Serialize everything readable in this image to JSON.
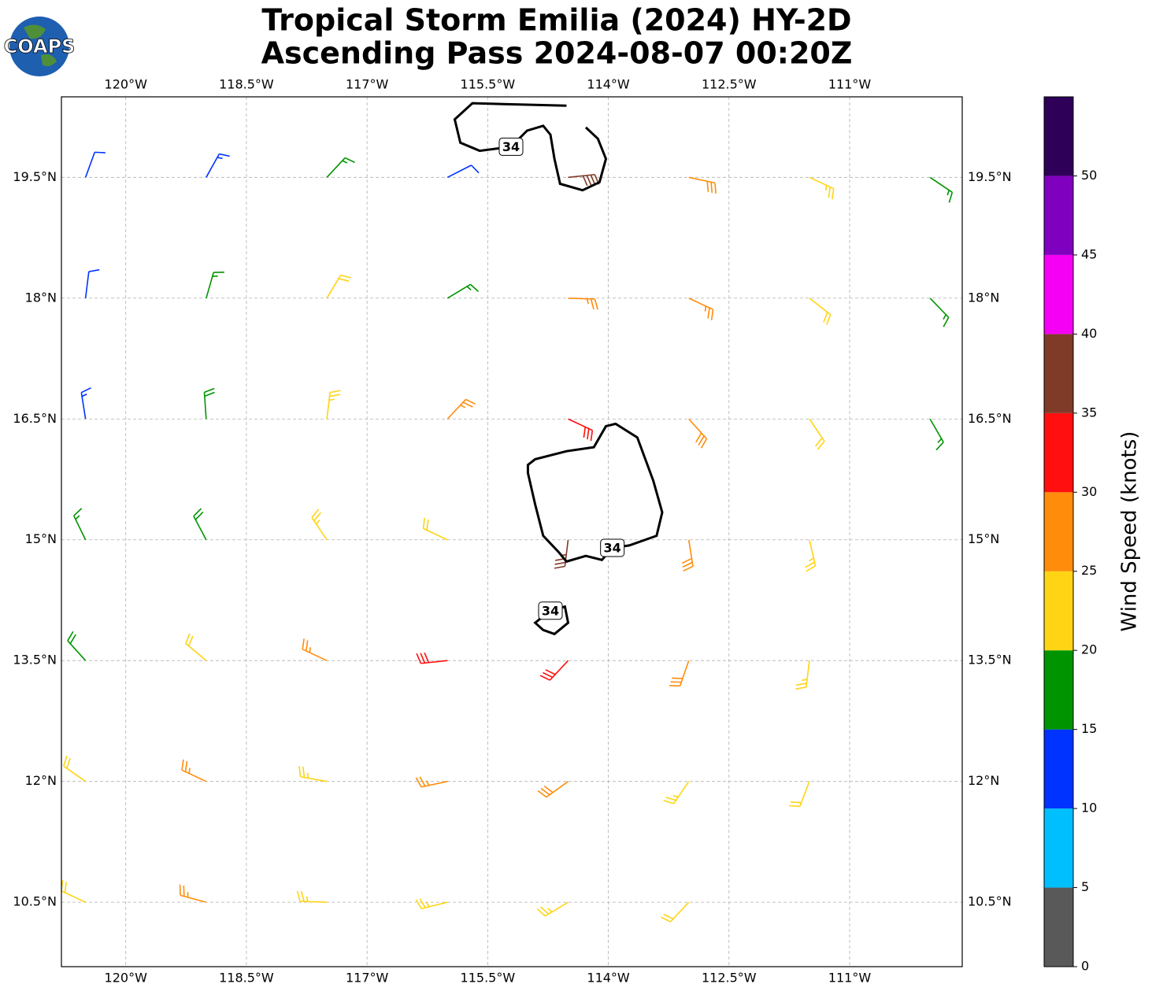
{
  "chart_data": {
    "type": "barbs",
    "logo": "COAPS",
    "title": [
      "Tropical Storm Emilia (2024) HY-2D",
      "Ascending Pass 2024-08-07 00:20Z"
    ],
    "xlim": [
      -120.8,
      -109.6
    ],
    "ylim": [
      9.7,
      20.5
    ],
    "xticks": [
      {
        "value": -120,
        "label": "120°W"
      },
      {
        "value": -118.5,
        "label": "118.5°W"
      },
      {
        "value": -117,
        "label": "117°W"
      },
      {
        "value": -115.5,
        "label": "115.5°W"
      },
      {
        "value": -114,
        "label": "114°W"
      },
      {
        "value": -112.5,
        "label": "112.5°W"
      },
      {
        "value": -111,
        "label": "111°W"
      }
    ],
    "yticks": [
      {
        "value": 10.5,
        "label": "10.5°N"
      },
      {
        "value": 12,
        "label": "12°N"
      },
      {
        "value": 13.5,
        "label": "13.5°N"
      },
      {
        "value": 15,
        "label": "15°N"
      },
      {
        "value": 16.5,
        "label": "16.5°N"
      },
      {
        "value": 18,
        "label": "18°N"
      },
      {
        "value": 19.5,
        "label": "19.5°N"
      }
    ],
    "grid": true,
    "barbs": {
      "lon": [
        -120.5,
        -119,
        -117.5,
        -116,
        -114.5,
        -113,
        -111.5,
        -110,
        -120.5,
        -119,
        -117.5,
        -116,
        -114.5,
        -113,
        -111.5,
        -110,
        -120.5,
        -119,
        -117.5,
        -116,
        -114.5,
        -113,
        -111.5,
        -110,
        -120.5,
        -119,
        -117.5,
        -116,
        -114.5,
        -113,
        -111.5,
        -120.5,
        -119,
        -117.5,
        -116,
        -114.5,
        -113,
        -111.5,
        -120.5,
        -119,
        -117.5,
        -116,
        -114.5,
        -113,
        -111.5,
        -120.5,
        -119,
        -117.5,
        -116,
        -114.5,
        -113
      ],
      "lat": [
        19.5,
        19.5,
        19.5,
        19.5,
        19.5,
        19.5,
        19.5,
        19.5,
        18,
        18,
        18,
        18,
        18,
        18,
        18,
        18,
        16.5,
        16.5,
        16.5,
        16.5,
        16.5,
        16.5,
        16.5,
        16.5,
        15,
        15,
        15,
        15,
        15,
        15,
        15,
        13.5,
        13.5,
        13.5,
        13.5,
        13.5,
        13.5,
        13.5,
        12,
        12,
        12,
        12,
        12,
        12,
        12,
        10.5,
        10.5,
        10.5,
        10.5,
        10.5,
        10.5
      ],
      "speed": [
        12,
        13,
        17,
        12,
        38,
        28,
        23,
        17,
        12,
        16,
        22,
        17,
        25,
        27,
        22,
        15,
        13,
        18,
        23,
        27,
        32,
        28,
        22,
        17,
        15,
        19,
        23,
        22,
        37,
        29,
        23,
        18,
        22,
        27,
        31,
        32,
        28,
        23,
        21,
        26,
        24,
        27,
        28,
        24,
        22,
        22,
        26,
        23,
        23,
        24,
        22
      ],
      "direction": [
        20,
        29,
        43,
        63,
        84,
        102,
        115,
        124,
        7,
        16,
        31,
        59,
        92,
        115,
        128,
        136,
        351,
        356,
        7,
        43,
        115,
        138,
        146,
        150,
        334,
        332,
        326,
        295,
        187,
        171,
        167,
        318,
        310,
        295,
        264,
        223,
        199,
        187,
        305,
        295,
        280,
        258,
        234,
        214,
        201,
        295,
        285,
        272,
        256,
        239,
        223
      ]
    },
    "contour_level": 34,
    "contours": [
      {
        "closed": true,
        "lon": [
          -115.0,
          -114.91,
          -114.52,
          -114.18,
          -114.03,
          -113.91,
          -113.64,
          -113.44,
          -113.33,
          -113.4,
          -113.74,
          -113.95,
          -114.08,
          -114.28,
          -114.52,
          -114.62,
          -114.81,
          -114.91,
          -115.0
        ],
        "lat": [
          15.93,
          16.0,
          16.1,
          16.15,
          16.41,
          16.44,
          16.27,
          15.73,
          15.34,
          15.05,
          14.93,
          14.9,
          14.75,
          14.8,
          14.73,
          14.85,
          15.05,
          15.44,
          15.83
        ]
      },
      {
        "closed": true,
        "lon": [
          -114.91,
          -114.72,
          -114.54,
          -114.5,
          -114.67,
          -114.81
        ],
        "lat": [
          13.97,
          14.12,
          14.17,
          13.97,
          13.83,
          13.88
        ]
      },
      {
        "closed": false,
        "lon": [
          -114.52,
          -115.69,
          -115.91,
          -115.84,
          -115.6,
          -115.21,
          -115.01,
          -114.81,
          -114.72,
          -114.67,
          -114.6,
          -114.32,
          -114.11,
          -114.03,
          -114.13,
          -114.28
        ],
        "lat": [
          20.39,
          20.42,
          20.22,
          19.93,
          19.83,
          19.88,
          20.08,
          20.14,
          20.03,
          19.73,
          19.42,
          19.34,
          19.44,
          19.73,
          19.98,
          20.12
        ]
      }
    ],
    "colorbar": {
      "label": "Wind Speed (knots)",
      "bounds": [
        0,
        5,
        10,
        15,
        20,
        25,
        30,
        35,
        40,
        45,
        50,
        55
      ],
      "colors": [
        "#595959",
        "#00bfff",
        "#0033ff",
        "#009400",
        "#ffd414",
        "#ff8c0a",
        "#ff0f0f",
        "#7f3a28",
        "#f500f5",
        "#8000bf",
        "#2e0058"
      ],
      "ticks": [
        0,
        5,
        10,
        15,
        20,
        25,
        30,
        35,
        40,
        45,
        50
      ]
    }
  }
}
